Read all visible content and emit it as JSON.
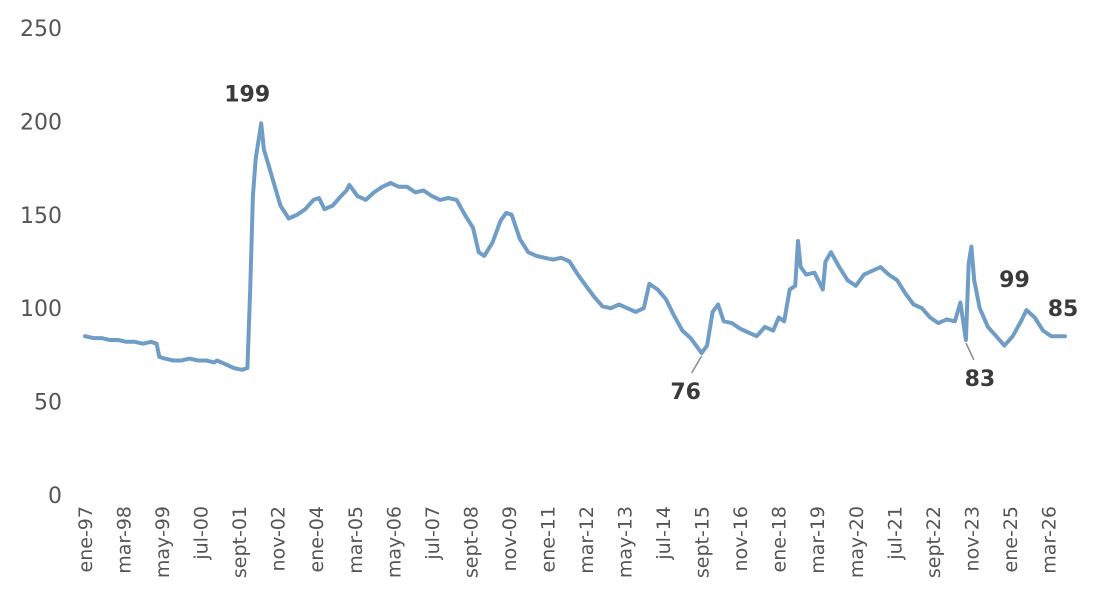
{
  "chart_data": {
    "type": "line",
    "title": "",
    "xlabel": "",
    "ylabel": "",
    "ylim": [
      0,
      250
    ],
    "yticks": [
      0,
      50,
      100,
      150,
      200,
      250
    ],
    "x_range": [
      "1997-01",
      "2026-09"
    ],
    "grid": false,
    "legend": "none",
    "line_color": "#6f9dc6",
    "annotation_color": "#3a3a3a",
    "axis_label_color": "#555555",
    "xtick_labels": [
      {
        "date": "1997-01",
        "label": "ene-97"
      },
      {
        "date": "1998-03",
        "label": "mar-98"
      },
      {
        "date": "1999-05",
        "label": "may-99"
      },
      {
        "date": "2000-07",
        "label": "jul-00"
      },
      {
        "date": "2001-09",
        "label": "sept-01"
      },
      {
        "date": "2002-11",
        "label": "nov-02"
      },
      {
        "date": "2004-01",
        "label": "ene-04"
      },
      {
        "date": "2005-03",
        "label": "mar-05"
      },
      {
        "date": "2006-05",
        "label": "may-06"
      },
      {
        "date": "2007-07",
        "label": "jul-07"
      },
      {
        "date": "2008-09",
        "label": "sept-08"
      },
      {
        "date": "2009-11",
        "label": "nov-09"
      },
      {
        "date": "2011-01",
        "label": "ene-11"
      },
      {
        "date": "2012-03",
        "label": "mar-12"
      },
      {
        "date": "2013-05",
        "label": "may-13"
      },
      {
        "date": "2014-07",
        "label": "jul-14"
      },
      {
        "date": "2015-09",
        "label": "sept-15"
      },
      {
        "date": "2016-11",
        "label": "nov-16"
      },
      {
        "date": "2018-01",
        "label": "ene-18"
      },
      {
        "date": "2019-03",
        "label": "mar-19"
      },
      {
        "date": "2020-05",
        "label": "may-20"
      },
      {
        "date": "2021-07",
        "label": "jul-21"
      },
      {
        "date": "2022-09",
        "label": "sept-22"
      },
      {
        "date": "2023-11",
        "label": "nov-23"
      },
      {
        "date": "2025-01",
        "label": "ene-25"
      },
      {
        "date": "2026-03",
        "label": "mar-26"
      }
    ],
    "annotations": [
      {
        "text": "199",
        "date": "2002-05",
        "value": 199,
        "leader": false
      },
      {
        "text": "76",
        "date": "2015-09",
        "value": 76,
        "leader": true
      },
      {
        "text": "83",
        "date": "2023-09",
        "value": 83,
        "leader": true
      },
      {
        "text": "99",
        "date": "2025-07",
        "value": 99,
        "leader": false
      },
      {
        "text": "85",
        "date": "2026-09",
        "value": 85,
        "leader": false
      }
    ],
    "series": [
      {
        "points": [
          [
            "1997-01",
            85
          ],
          [
            "1997-04",
            84
          ],
          [
            "1997-07",
            84
          ],
          [
            "1997-10",
            83
          ],
          [
            "1998-01",
            83
          ],
          [
            "1998-04",
            82
          ],
          [
            "1998-07",
            82
          ],
          [
            "1998-10",
            81
          ],
          [
            "1999-01",
            82
          ],
          [
            "1999-03",
            81
          ],
          [
            "1999-04",
            74
          ],
          [
            "1999-06",
            73
          ],
          [
            "1999-09",
            72
          ],
          [
            "1999-12",
            72
          ],
          [
            "2000-03",
            73
          ],
          [
            "2000-06",
            72
          ],
          [
            "2000-09",
            72
          ],
          [
            "2000-12",
            71
          ],
          [
            "2001-01",
            72
          ],
          [
            "2001-04",
            70
          ],
          [
            "2001-07",
            68
          ],
          [
            "2001-10",
            67
          ],
          [
            "2001-12",
            68
          ],
          [
            "2002-01",
            110
          ],
          [
            "2002-02",
            160
          ],
          [
            "2002-03",
            180
          ],
          [
            "2002-05",
            199
          ],
          [
            "2002-06",
            185
          ],
          [
            "2002-08",
            175
          ],
          [
            "2002-10",
            165
          ],
          [
            "2002-12",
            155
          ],
          [
            "2003-03",
            148
          ],
          [
            "2003-06",
            150
          ],
          [
            "2003-09",
            153
          ],
          [
            "2003-12",
            158
          ],
          [
            "2004-02",
            159
          ],
          [
            "2004-04",
            153
          ],
          [
            "2004-07",
            155
          ],
          [
            "2004-10",
            160
          ],
          [
            "2004-12",
            163
          ],
          [
            "2005-01",
            166
          ],
          [
            "2005-04",
            160
          ],
          [
            "2005-07",
            158
          ],
          [
            "2005-10",
            162
          ],
          [
            "2006-01",
            165
          ],
          [
            "2006-04",
            167
          ],
          [
            "2006-07",
            165
          ],
          [
            "2006-10",
            165
          ],
          [
            "2007-01",
            162
          ],
          [
            "2007-04",
            163
          ],
          [
            "2007-07",
            160
          ],
          [
            "2007-10",
            158
          ],
          [
            "2008-01",
            159
          ],
          [
            "2008-04",
            158
          ],
          [
            "2008-07",
            150
          ],
          [
            "2008-10",
            143
          ],
          [
            "2008-12",
            130
          ],
          [
            "2009-02",
            128
          ],
          [
            "2009-05",
            135
          ],
          [
            "2009-08",
            147
          ],
          [
            "2009-10",
            151
          ],
          [
            "2009-12",
            150
          ],
          [
            "2010-03",
            137
          ],
          [
            "2010-06",
            130
          ],
          [
            "2010-09",
            128
          ],
          [
            "2010-12",
            127
          ],
          [
            "2011-03",
            126
          ],
          [
            "2011-06",
            127
          ],
          [
            "2011-09",
            125
          ],
          [
            "2011-12",
            118
          ],
          [
            "2012-03",
            112
          ],
          [
            "2012-06",
            106
          ],
          [
            "2012-09",
            101
          ],
          [
            "2012-12",
            100
          ],
          [
            "2013-03",
            102
          ],
          [
            "2013-06",
            100
          ],
          [
            "2013-09",
            98
          ],
          [
            "2013-12",
            100
          ],
          [
            "2014-02",
            113
          ],
          [
            "2014-05",
            110
          ],
          [
            "2014-08",
            105
          ],
          [
            "2014-11",
            96
          ],
          [
            "2015-02",
            88
          ],
          [
            "2015-05",
            84
          ],
          [
            "2015-07",
            80
          ],
          [
            "2015-09",
            76
          ],
          [
            "2015-11",
            80
          ],
          [
            "2016-01",
            98
          ],
          [
            "2016-03",
            102
          ],
          [
            "2016-05",
            93
          ],
          [
            "2016-08",
            92
          ],
          [
            "2016-11",
            89
          ],
          [
            "2017-02",
            87
          ],
          [
            "2017-05",
            85
          ],
          [
            "2017-08",
            90
          ],
          [
            "2017-11",
            88
          ],
          [
            "2018-01",
            95
          ],
          [
            "2018-03",
            93
          ],
          [
            "2018-05",
            110
          ],
          [
            "2018-07",
            112
          ],
          [
            "2018-08",
            136
          ],
          [
            "2018-09",
            122
          ],
          [
            "2018-11",
            118
          ],
          [
            "2019-02",
            119
          ],
          [
            "2019-05",
            110
          ],
          [
            "2019-06",
            125
          ],
          [
            "2019-08",
            130
          ],
          [
            "2019-11",
            122
          ],
          [
            "2020-02",
            115
          ],
          [
            "2020-05",
            112
          ],
          [
            "2020-08",
            118
          ],
          [
            "2020-11",
            120
          ],
          [
            "2021-02",
            122
          ],
          [
            "2021-05",
            118
          ],
          [
            "2021-08",
            115
          ],
          [
            "2021-11",
            108
          ],
          [
            "2022-02",
            102
          ],
          [
            "2022-05",
            100
          ],
          [
            "2022-08",
            95
          ],
          [
            "2022-11",
            92
          ],
          [
            "2023-02",
            94
          ],
          [
            "2023-05",
            93
          ],
          [
            "2023-07",
            103
          ],
          [
            "2023-09",
            83
          ],
          [
            "2023-10",
            124
          ],
          [
            "2023-11",
            133
          ],
          [
            "2023-12",
            115
          ],
          [
            "2024-02",
            100
          ],
          [
            "2024-05",
            90
          ],
          [
            "2024-08",
            85
          ],
          [
            "2024-11",
            80
          ],
          [
            "2025-02",
            85
          ],
          [
            "2025-05",
            93
          ],
          [
            "2025-07",
            99
          ],
          [
            "2025-10",
            95
          ],
          [
            "2026-01",
            88
          ],
          [
            "2026-04",
            85
          ],
          [
            "2026-09",
            85
          ]
        ]
      }
    ]
  }
}
